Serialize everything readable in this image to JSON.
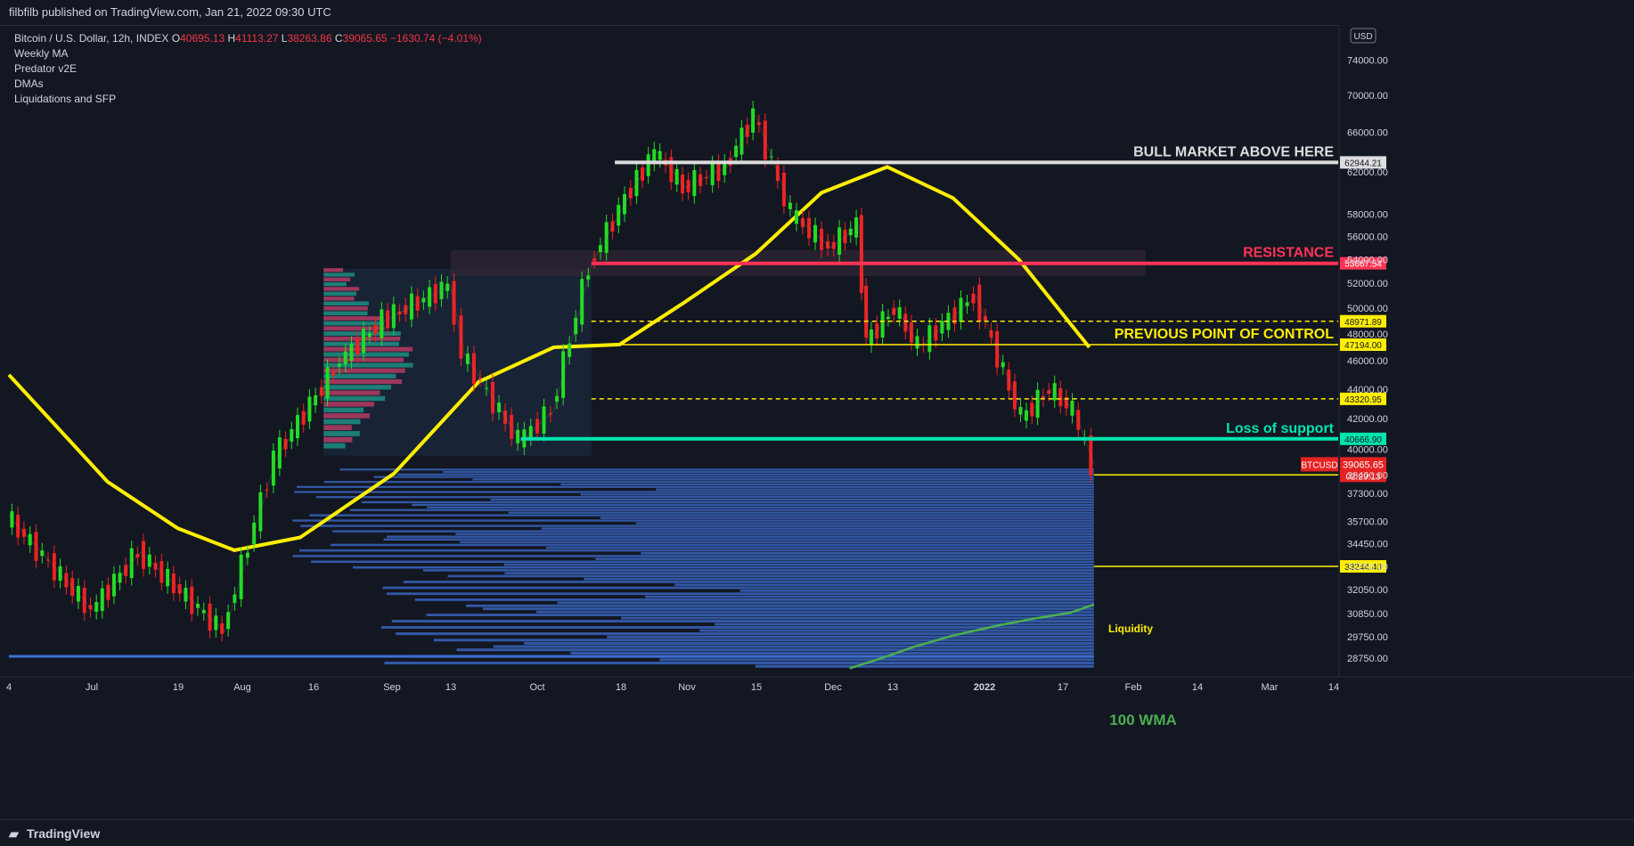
{
  "header": {
    "published": "filbfilb published on TradingView.com, Jan 21, 2022 09:30 UTC"
  },
  "legend": {
    "symbol": "Bitcoin / U.S. Dollar, 12h, INDEX",
    "ohlc": [
      {
        "k": "O",
        "v": "40695.13"
      },
      {
        "k": "H",
        "v": "41113.27"
      },
      {
        "k": "L",
        "v": "38263.86"
      },
      {
        "k": "C",
        "v": "39065.65"
      }
    ],
    "change": "−1630.74 (−4.01%)",
    "indicators": [
      "Weekly MA",
      "Predator v2E",
      "DMAs",
      "Liquidations and SFP"
    ]
  },
  "footer": {
    "brand": "TradingView"
  },
  "colors": {
    "bg": "#131722",
    "up": "#22dd22",
    "down": "#ee2222",
    "ma": "#ffee00",
    "support": "#00e5b0",
    "resistance": "#ff3355",
    "wma": "#4caf50",
    "liquidity": "#3d6fd1"
  },
  "chart_data": {
    "type": "line",
    "title": "",
    "symbol": "BTCUSD",
    "currency": "USD",
    "y_scale": "log",
    "ylim": [
      28000,
      78000
    ],
    "y_ticks": [
      28750,
      29750,
      30850,
      32050,
      33250,
      34450,
      35700,
      37300,
      38400,
      40000,
      42000,
      44000,
      46000,
      48000,
      50000,
      52000,
      54000,
      56000,
      58000,
      62000,
      66000,
      70000,
      74000
    ],
    "x_ticks": [
      "4",
      "Jul",
      "19",
      "Aug",
      "16",
      "Sep",
      "13",
      "Oct",
      "18",
      "Nov",
      "15",
      "Dec",
      "13",
      "2022",
      "17",
      "Feb",
      "14",
      "Mar",
      "14"
    ],
    "price_series": {
      "name": "BTCUSD",
      "x": [
        "2021-06-04",
        "2021-06-22",
        "2021-07-02",
        "2021-07-20",
        "2021-07-31",
        "2021-08-14",
        "2021-08-23",
        "2021-09-06",
        "2021-09-09",
        "2021-09-21",
        "2021-09-28",
        "2021-10-06",
        "2021-10-15",
        "2021-10-20",
        "2021-10-26",
        "2021-11-04",
        "2021-11-10",
        "2021-11-18",
        "2021-11-26",
        "2021-12-02",
        "2021-12-04",
        "2021-12-10",
        "2021-12-15",
        "2021-12-27",
        "2022-01-06",
        "2022-01-12",
        "2022-01-17",
        "2022-01-21"
      ],
      "y": [
        36000,
        31000,
        34000,
        30000,
        39500,
        46000,
        49000,
        51800,
        46500,
        40500,
        42500,
        53500,
        60500,
        64000,
        60500,
        62500,
        67800,
        58000,
        55000,
        57000,
        47500,
        50000,
        47000,
        51000,
        42000,
        44000,
        42500,
        39065
      ]
    },
    "weekly_ma": {
      "x": [
        "2021-06-04",
        "2021-06-25",
        "2021-07-10",
        "2021-07-22",
        "2021-08-05",
        "2021-08-25",
        "2021-09-12",
        "2021-09-28",
        "2021-10-12",
        "2021-10-26",
        "2021-11-10",
        "2021-11-24",
        "2021-12-08",
        "2021-12-22",
        "2022-01-05",
        "2022-01-20"
      ],
      "y": [
        45000,
        38000,
        35300,
        34100,
        34800,
        38500,
        44500,
        47000,
        47200,
        50500,
        54500,
        60000,
        62500,
        59500,
        54000,
        47000
      ]
    },
    "wma_100": {
      "label": "100 WMA",
      "x": [
        "2021-11-30",
        "2021-12-06",
        "2021-12-14",
        "2021-12-22",
        "2022-01-01",
        "2022-01-08",
        "2022-01-16",
        "2022-01-21"
      ],
      "y": [
        28300,
        28700,
        29300,
        29800,
        30300,
        30600,
        30900,
        31300
      ]
    },
    "levels": [
      {
        "price": 62944.21,
        "label": "62944.21",
        "note": "BULL MARKET ABOVE HERE",
        "color": "#dddddd",
        "style": "solid",
        "x_start": "2021-10-11"
      },
      {
        "price": 53667.54,
        "label": "53667.54",
        "note": "RESISTANCE",
        "color": "#ff3355",
        "style": "solid",
        "x_start": "2021-10-06"
      },
      {
        "price": 48971.89,
        "label": "48971.89",
        "note": "",
        "color": "#ffee00",
        "style": "dashed",
        "x_start": "2021-10-06"
      },
      {
        "price": 47194.0,
        "label": "47194.00",
        "note": "PREVIOUS POINT OF CONTROL",
        "color": "#ffee00",
        "style": "solid",
        "x_start": "2021-10-06"
      },
      {
        "price": 43320.95,
        "label": "43320.95",
        "note": "",
        "color": "#ffee00",
        "style": "dashed",
        "x_start": "2021-10-06"
      },
      {
        "price": 40666.9,
        "label": "40666.90",
        "note": "Loss of support",
        "color": "#00e5b0",
        "style": "solid",
        "x_start": "2021-09-21"
      },
      {
        "price": 38416.36,
        "label": "38416.36",
        "note": "",
        "color": "#ffee00",
        "style": "solid",
        "x_start": "2022-01-21"
      },
      {
        "price": 33244.4,
        "label": "33244.40",
        "note": "",
        "color": "#ffee00",
        "style": "solid",
        "x_start": "2022-01-21"
      }
    ],
    "last_price": {
      "symbol": "BTCUSD",
      "price": "39065.65",
      "countdown": "02:29:13"
    },
    "annotations": [
      {
        "text": "Liquidity",
        "color": "#ffee00"
      },
      {
        "text": "100 WMA",
        "color": "#4caf50"
      }
    ]
  }
}
